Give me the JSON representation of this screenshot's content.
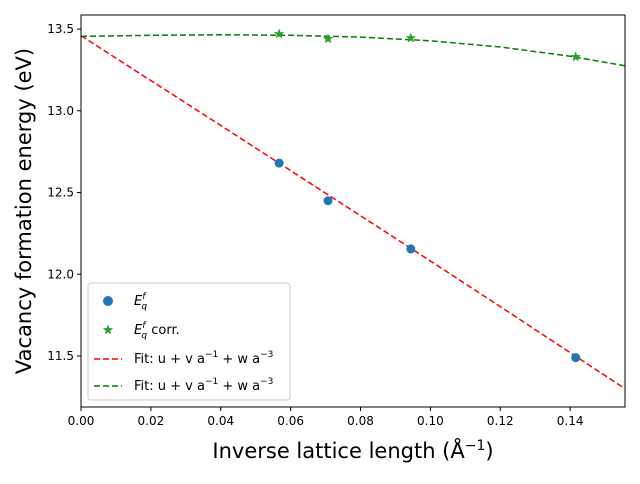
{
  "chart_data": {
    "type": "scatter",
    "title": "",
    "xlabel": "Inverse lattice length (Å",
    "xlabel_sup": "−1",
    "xlabel_end": ")",
    "ylabel": "Vacancy formation energy (eV)",
    "xlim": [
      0.0,
      0.1557
    ],
    "ylim": [
      11.188,
      13.586
    ],
    "xticks": [
      "0.00",
      "0.02",
      "0.04",
      "0.06",
      "0.08",
      "0.10",
      "0.12",
      "0.14"
    ],
    "yticks": [
      "11.5",
      "12.0",
      "12.5",
      "13.0",
      "13.5"
    ],
    "grid": false,
    "legend_position": "lower-left",
    "series": [
      {
        "name": "E_q^f",
        "label_main": "E",
        "label_sub": "q",
        "label_sup": "f",
        "label_tail": "",
        "kind": "points",
        "marker": "circle",
        "color": "#1f77b4",
        "x": [
          0.0567,
          0.0707,
          0.0944,
          0.1416
        ],
        "y": [
          12.68,
          12.45,
          12.155,
          11.49
        ]
      },
      {
        "name": "E_q^f corr.",
        "label_main": "E",
        "label_sub": "q",
        "label_sup": "f",
        "label_tail": " corr.",
        "kind": "points",
        "marker": "star",
        "color": "#2ca02c",
        "x": [
          0.0567,
          0.0707,
          0.0944,
          0.1416
        ],
        "y": [
          13.47,
          13.44,
          13.445,
          13.33
        ]
      },
      {
        "name": "Fit: u + v a^-1 + w a^-3",
        "label_text": "Fit: u + v a",
        "label_sup1": "−1",
        "label_mid": " + w a",
        "label_sup2": "−3",
        "kind": "line",
        "style": "dashed",
        "color": "#ff0000",
        "x": [
          0,
          0.02,
          0.04,
          0.06,
          0.08,
          0.1,
          0.12,
          0.14,
          0.1557
        ],
        "y": [
          13.46,
          13.185,
          12.91,
          12.634,
          12.358,
          12.081,
          11.802,
          11.521,
          11.3
        ]
      },
      {
        "name": "Fit: u + v a^-1 + w a^-3",
        "label_text": "Fit: u + v a",
        "label_sup1": "−1",
        "label_mid": " + w a",
        "label_sup2": "−3",
        "kind": "line",
        "style": "dashed",
        "color": "#008000",
        "x": [
          0,
          0.02,
          0.04,
          0.06,
          0.08,
          0.1,
          0.12,
          0.14,
          0.1557
        ],
        "y": [
          13.455,
          13.462,
          13.465,
          13.462,
          13.451,
          13.428,
          13.39,
          13.334,
          13.275
        ]
      }
    ]
  }
}
